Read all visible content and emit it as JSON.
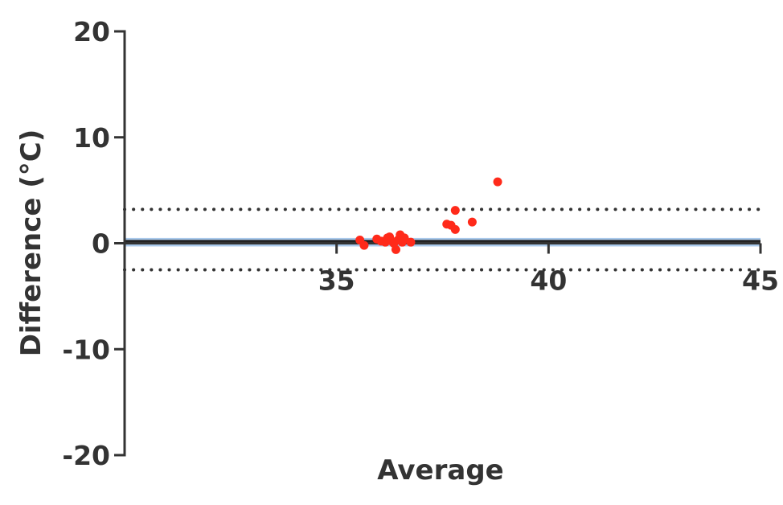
{
  "chart_data": {
    "type": "scatter",
    "title": "",
    "xlabel": "Average",
    "ylabel": "Difference (°C)",
    "xlim": [
      30,
      45
    ],
    "ylim": [
      -20,
      20
    ],
    "x_ticks": [
      35,
      40,
      45
    ],
    "x_tick_labels": [
      "35",
      "40",
      "45"
    ],
    "y_ticks": [
      20,
      10,
      0,
      -10,
      -20
    ],
    "y_tick_labels": [
      "20",
      "10",
      "0",
      "-10",
      "-20"
    ],
    "grid": false,
    "legend": "none",
    "mean_difference": 0.2,
    "mean_band": [
      -0.3,
      0.5
    ],
    "upper_limit_of_agreement": 3.2,
    "lower_limit_of_agreement": -2.5,
    "series": [
      {
        "points": [
          {
            "x": 35.55,
            "y": 0.3
          },
          {
            "x": 35.65,
            "y": -0.2
          },
          {
            "x": 35.95,
            "y": 0.4
          },
          {
            "x": 36.05,
            "y": 0.2
          },
          {
            "x": 36.15,
            "y": 0.1
          },
          {
            "x": 36.2,
            "y": 0.5
          },
          {
            "x": 36.25,
            "y": 0.6
          },
          {
            "x": 36.3,
            "y": 0.2
          },
          {
            "x": 36.35,
            "y": 0.0
          },
          {
            "x": 36.4,
            "y": -0.6
          },
          {
            "x": 36.45,
            "y": 0.3
          },
          {
            "x": 36.5,
            "y": 0.8
          },
          {
            "x": 36.55,
            "y": 0.1
          },
          {
            "x": 36.6,
            "y": 0.5
          },
          {
            "x": 36.75,
            "y": 0.1
          },
          {
            "x": 37.6,
            "y": 1.8
          },
          {
            "x": 37.7,
            "y": 1.7
          },
          {
            "x": 37.8,
            "y": 1.3
          },
          {
            "x": 37.8,
            "y": 3.1
          },
          {
            "x": 38.2,
            "y": 2.0
          },
          {
            "x": 38.8,
            "y": 5.8
          }
        ]
      }
    ],
    "colors": {
      "points": "#ff2a1a",
      "axis": "#333333",
      "mean_line": "#222222",
      "mean_band": "#a9c9eb",
      "limits": "#333333"
    }
  }
}
